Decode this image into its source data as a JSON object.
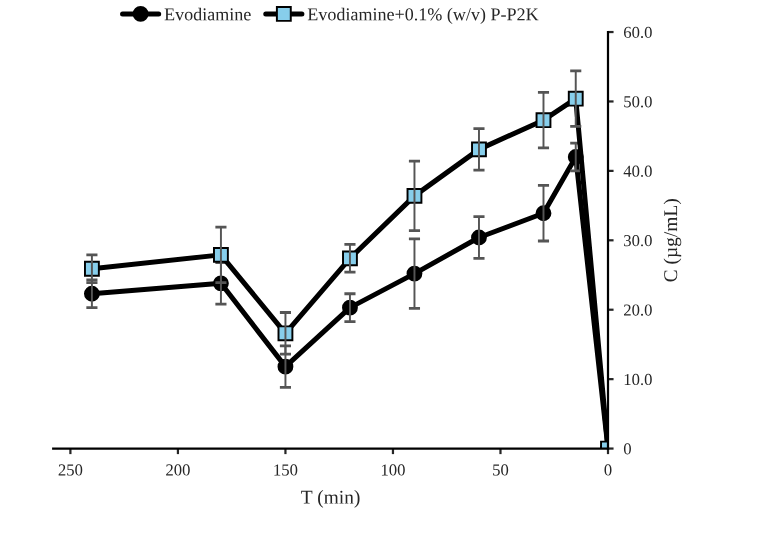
{
  "chart_data": {
    "type": "line",
    "xlabel": "T (min)",
    "ylabel": "C (µg/mL)",
    "x": [
      0,
      15,
      30,
      60,
      90,
      120,
      150,
      180,
      240
    ],
    "series": [
      {
        "name": "Evodiamine",
        "color": "#000000",
        "marker": "circle",
        "values": [
          0,
          42.0,
          33.9,
          30.4,
          25.2,
          20.3,
          11.8,
          23.8,
          22.3
        ],
        "errors": [
          null,
          2,
          4,
          3,
          5,
          2,
          3,
          3,
          2
        ]
      },
      {
        "name": "Evodiamine+0.1% (w/v) P-P2K",
        "color": "#87ceeb",
        "marker": "square",
        "values": [
          0,
          50.4,
          47.3,
          43.1,
          36.4,
          27.4,
          16.6,
          27.9,
          25.9
        ],
        "errors": [
          null,
          4,
          4,
          3,
          5,
          2,
          3,
          4,
          2
        ]
      }
    ],
    "xlim": [
      258,
      0
    ],
    "xticks": [
      0,
      50,
      100,
      150,
      200,
      250
    ],
    "ylim": [
      0,
      60
    ],
    "yticks": [
      0,
      {
        "value": 10,
        "label": "10.0"
      },
      {
        "value": 20,
        "label": "20.0"
      },
      {
        "value": 30,
        "label": "30.0"
      },
      {
        "value": 40,
        "label": "40.0"
      },
      {
        "value": 50,
        "label": "50.0"
      },
      {
        "value": 60,
        "label": "60.0"
      }
    ],
    "grid": false,
    "legend": "top",
    "line_style": "solid"
  }
}
